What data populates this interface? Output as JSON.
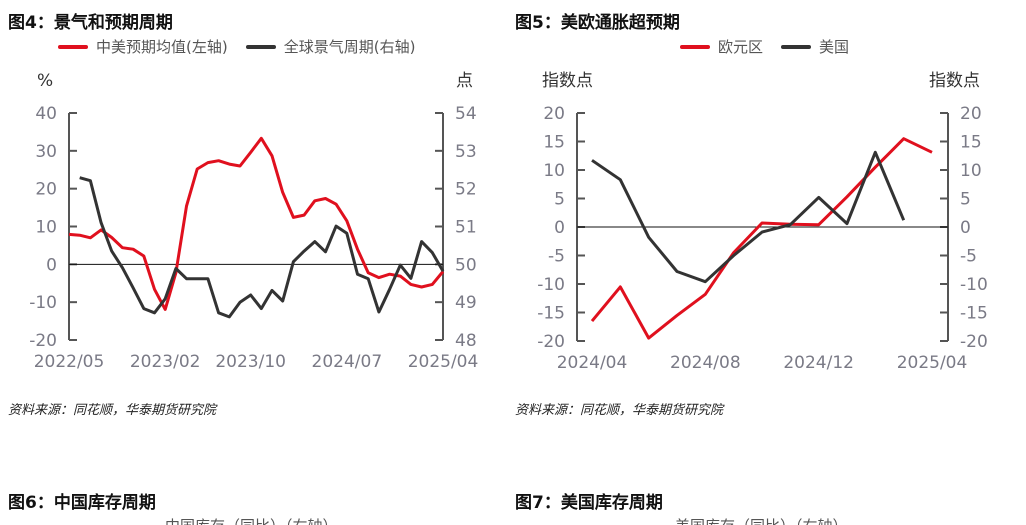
{
  "figures": [
    {
      "title": "图4：景气和预期周期",
      "source": "资料来源：同花顺，华泰期货研究院"
    },
    {
      "title": "图5：美欧通胀超预期",
      "source": "资料来源：同花顺，华泰期货研究院"
    },
    {
      "title": "图6：中国库存周期",
      "legend_partial": "中国库存（同比）（右轴）"
    },
    {
      "title": "图7：美国库存周期",
      "legend_partial": "美国库存（同比）（右轴）"
    }
  ],
  "chart_data": [
    {
      "type": "line",
      "title": "图4：景气和预期周期",
      "left_unit": "%",
      "right_unit": "点",
      "ylim_left": [
        -20,
        40
      ],
      "ylim_right": [
        48,
        54
      ],
      "left_ticks": [
        "40",
        "30",
        "20",
        "10",
        "0",
        "-10",
        "-20"
      ],
      "right_ticks": [
        "54",
        "53",
        "52",
        "51",
        "50",
        "49",
        "48"
      ],
      "x_tick_labels": [
        "2022/05",
        "2023/02",
        "2023/10",
        "2024/07",
        "2025/04"
      ],
      "x_range": [
        "2022/05",
        "2025/04"
      ],
      "series": [
        {
          "name": "中美预期均值(左轴)",
          "axis": "left",
          "color": "#e0101e",
          "start": "2022/05",
          "values": [
            7.9,
            7.7,
            7.0,
            9.1,
            7.1,
            4.4,
            4.0,
            2.2,
            -6.6,
            -11.9,
            -2.2,
            15.4,
            25.2,
            26.9,
            27.4,
            26.5,
            26.0,
            29.6,
            33.3,
            28.7,
            19.0,
            12.4,
            13.0,
            16.8,
            17.4,
            15.9,
            11.5,
            4.0,
            -2.2,
            -3.5,
            -2.6,
            -3.1,
            -5.3,
            -6.0,
            -5.3,
            -1.9
          ]
        },
        {
          "name": "全球景气周期(右轴)",
          "axis": "right",
          "color": "#333333",
          "start": "2022/06",
          "values": [
            52.29,
            52.21,
            51.1,
            50.35,
            49.91,
            49.38,
            48.83,
            48.72,
            49.09,
            49.89,
            49.62,
            49.62,
            49.62,
            48.72,
            48.61,
            49.0,
            49.19,
            48.83,
            49.31,
            49.03,
            50.07,
            50.35,
            50.6,
            50.33,
            51.01,
            50.82,
            49.74,
            49.62,
            48.74,
            49.34,
            49.98,
            49.63,
            50.6,
            50.31,
            49.82
          ]
        }
      ]
    },
    {
      "type": "line",
      "title": "图5：美欧通胀超预期",
      "left_unit": "指数点",
      "right_unit": "指数点",
      "ylim_left": [
        -20,
        20
      ],
      "ylim_right": [
        -20,
        20
      ],
      "left_ticks": [
        "20",
        "15",
        "10",
        "5",
        "0",
        "-5",
        "-10",
        "-15",
        "-20"
      ],
      "right_ticks": [
        "20",
        "15",
        "10",
        "5",
        "0",
        "-5",
        "-10",
        "-15",
        "-20"
      ],
      "x_tick_labels": [
        "2024/04",
        "2024/08",
        "2024/12",
        "2025/04"
      ],
      "x_range": [
        "2024/04",
        "2025/04"
      ],
      "series": [
        {
          "name": "欧元区",
          "axis": "left",
          "color": "#e0101e",
          "start": "2024/04",
          "values": [
            -16.5,
            -10.5,
            -19.5,
            -15.5,
            -11.8,
            -4.5,
            0.7,
            0.5,
            0.4,
            5.3,
            10.5,
            15.5,
            13.1
          ]
        },
        {
          "name": "美国",
          "axis": "left",
          "color": "#333333",
          "start": "2024/04",
          "values": [
            11.7,
            8.3,
            -1.8,
            -7.8,
            -9.6,
            -5.0,
            -0.9,
            0.4,
            5.2,
            0.6,
            13.1,
            1.2
          ]
        }
      ]
    }
  ]
}
